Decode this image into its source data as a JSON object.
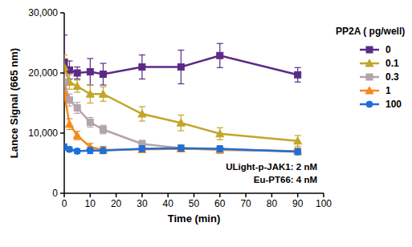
{
  "chart_data": {
    "type": "line",
    "x_label": "Time (min)",
    "y_label": "Lance Signal (665 nm)",
    "legend_title": "PP2A ( pg/well)",
    "annotations": [
      "ULight-p-JAK1: 2 nM",
      "Eu-PT66: 4 nM"
    ],
    "x": [
      0,
      2,
      5,
      10,
      15,
      30,
      45,
      60,
      90
    ],
    "xlim": [
      0,
      100
    ],
    "xticks": [
      0,
      10,
      20,
      30,
      40,
      50,
      60,
      70,
      80,
      90,
      100
    ],
    "ylim": [
      0,
      30000
    ],
    "yticks": [
      0,
      {
        "value": 10000,
        "label": "10,000"
      },
      {
        "value": 20000,
        "label": "20,000"
      },
      {
        "value": 30000,
        "label": "30,000"
      }
    ],
    "grid": false,
    "legend": "right",
    "series": [
      {
        "name": "0",
        "color": "#5b2a86",
        "marker": "square",
        "values": [
          21800,
          20500,
          20000,
          20200,
          19800,
          21000,
          21000,
          22900,
          19700
        ],
        "errors": [
          4500,
          1500,
          1000,
          2200,
          1800,
          2000,
          2800,
          2000,
          1200
        ]
      },
      {
        "name": "0.1",
        "color": "#c3a52a",
        "marker": "triangle",
        "values": [
          21000,
          18500,
          17800,
          16500,
          16500,
          13200,
          11700,
          9900,
          8700
        ],
        "errors": [
          2000,
          1200,
          1000,
          1500,
          1200,
          1200,
          1300,
          1000,
          900
        ]
      },
      {
        "name": "0.3",
        "color": "#b3a3ac",
        "marker": "square",
        "values": [
          18500,
          15500,
          14200,
          11800,
          10600,
          8200,
          7500,
          7200,
          7000
        ],
        "errors": [
          1000,
          1000,
          900,
          800,
          700,
          600,
          500,
          600,
          500
        ]
      },
      {
        "name": "1",
        "color": "#f28a1e",
        "marker": "triangle",
        "values": [
          16700,
          11500,
          9600,
          7700,
          7200,
          7300,
          7400,
          7300,
          7000
        ],
        "errors": [
          1200,
          900,
          700,
          600,
          600,
          500,
          500,
          500,
          500
        ]
      },
      {
        "name": "100",
        "color": "#1f6fd6",
        "marker": "circle",
        "values": [
          7700,
          7300,
          7000,
          7100,
          7100,
          7400,
          7500,
          7400,
          6900
        ],
        "errors": [
          500,
          400,
          400,
          500,
          500,
          500,
          500,
          500,
          500
        ]
      }
    ]
  }
}
